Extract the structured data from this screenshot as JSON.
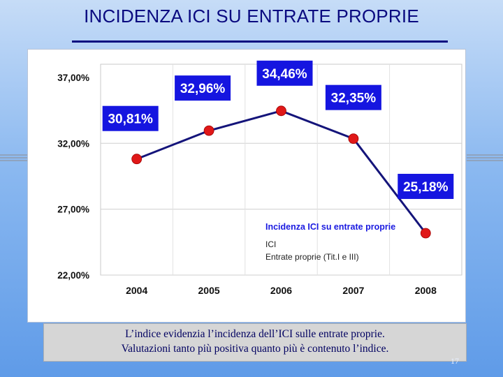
{
  "slide": {
    "title": "INCIDENZA ICI SU ENTRATE PROPRIE",
    "caption_line1": "L’indice evidenzia l’incidenza dell’ICI sulle entrate proprie.",
    "caption_line2": "Valutazioni tanto più positiva quanto più è contenuto l’indice.",
    "page_number": "17"
  },
  "colors": {
    "line": "#14147a",
    "marker": "#e01818",
    "label_bg": "#1515e0",
    "label_text": "#ffffff",
    "legend_title": "#1a1ae0"
  },
  "chart_data": {
    "type": "line",
    "categories": [
      "2004",
      "2005",
      "2006",
      "2007",
      "2008"
    ],
    "series": [
      {
        "name": "Incidenza ICI su entrate proprie",
        "values": [
          30.81,
          32.96,
          34.46,
          32.35,
          25.18
        ],
        "value_labels": [
          "30,81%",
          "32,96%",
          "34,46%",
          "32,35%",
          "25,18%"
        ]
      }
    ],
    "y_ticks": [
      {
        "value": 37,
        "label": "37,00%"
      },
      {
        "value": 32,
        "label": "32,00%"
      },
      {
        "value": 27,
        "label": "27,00%"
      },
      {
        "value": 22,
        "label": "22,00%"
      }
    ],
    "ylim": [
      22,
      38
    ],
    "grid": true,
    "legend": {
      "title": "Incidenza ICI su entrate proprie",
      "line1": "ICI",
      "line2": "Entrate proprie (Tit.I e III)",
      "placement": "bottom-right"
    }
  }
}
